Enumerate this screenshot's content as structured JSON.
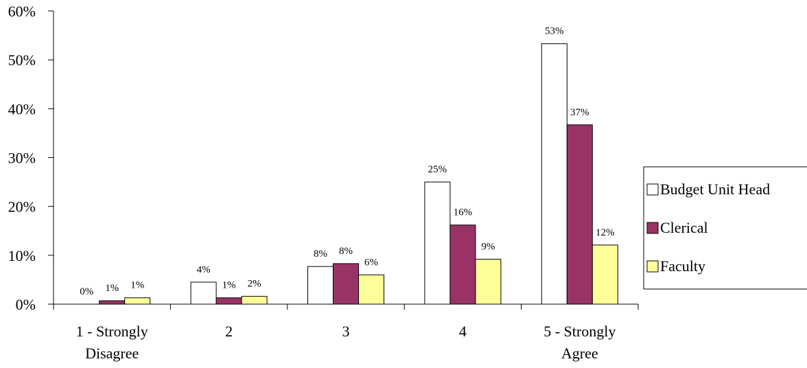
{
  "chart_data": {
    "type": "bar",
    "title": "",
    "xlabel": "",
    "ylabel": "",
    "categories": [
      [
        "1 - Strongly",
        "Disagree"
      ],
      [
        "2"
      ],
      [
        "3"
      ],
      [
        "4"
      ],
      [
        "5 - Strongly",
        "Agree"
      ]
    ],
    "series": [
      {
        "name": "Budget Unit Head",
        "values": [
          0,
          4.5,
          7.7,
          25,
          53.3
        ],
        "labels": [
          "0%",
          "4%",
          "8%",
          "25%",
          "53%"
        ],
        "color": "#FFFFFF"
      },
      {
        "name": "Clerical",
        "values": [
          0.7,
          1.3,
          8.3,
          16.2,
          36.7
        ],
        "labels": [
          "1%",
          "1%",
          "8%",
          "16%",
          "37%"
        ],
        "color": "#993366"
      },
      {
        "name": "Faculty",
        "values": [
          1.3,
          1.6,
          6.0,
          9.2,
          12.1
        ],
        "labels": [
          "1%",
          "2%",
          "6%",
          "9%",
          "12%"
        ],
        "color": "#FFFF99"
      }
    ],
    "ylim": [
      0,
      60
    ],
    "yticks": [
      0,
      10,
      20,
      30,
      40,
      50,
      60
    ],
    "ytick_labels": [
      "0%",
      "10%",
      "20%",
      "30%",
      "40%",
      "50%",
      "60%"
    ],
    "grid": false,
    "legend_position": "right"
  }
}
